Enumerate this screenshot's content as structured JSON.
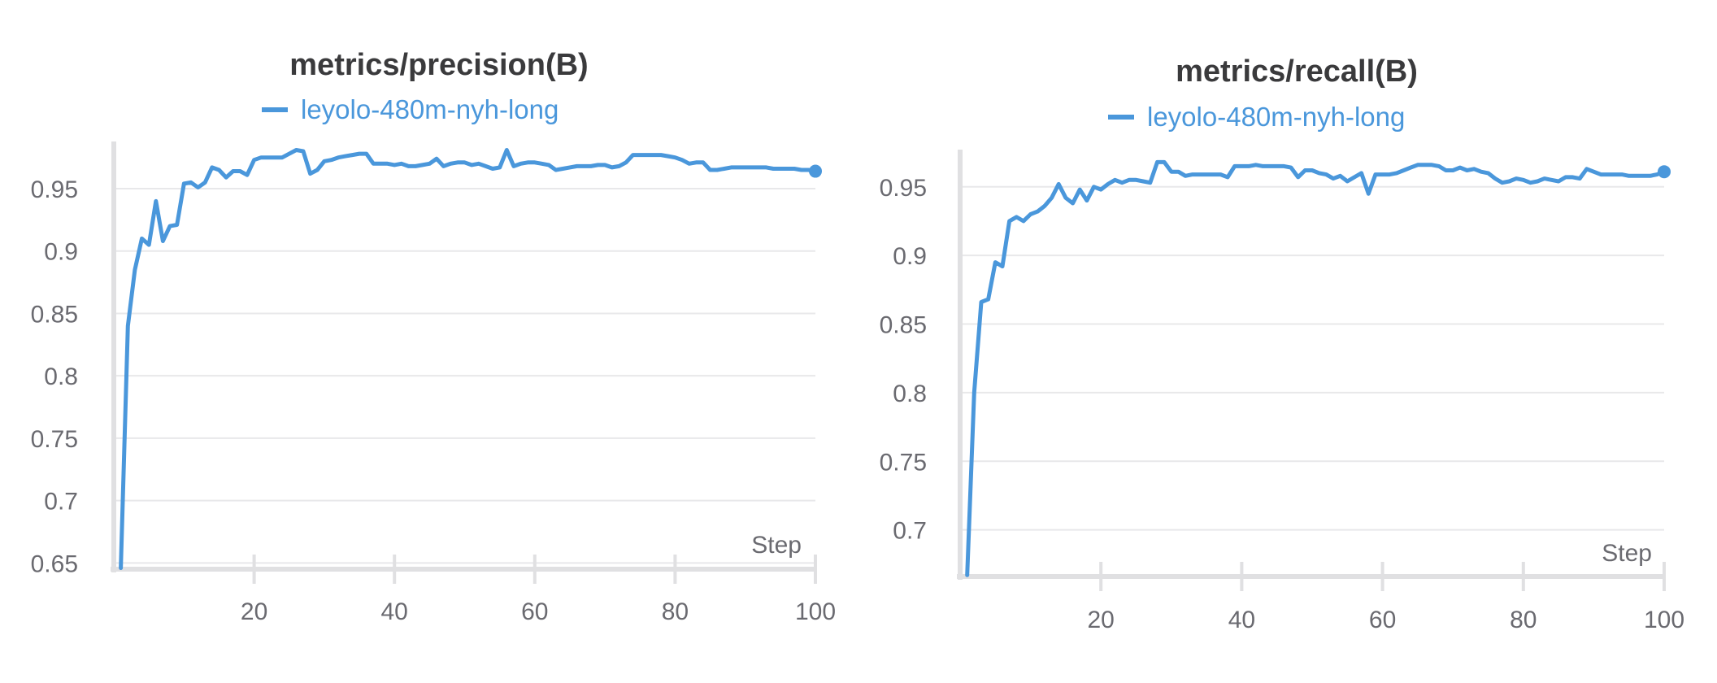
{
  "colors": {
    "series": "#4a97db",
    "text": "#3a3a3c",
    "muted": "#6a6a70"
  },
  "chart_data": [
    {
      "type": "line",
      "title": "metrics/precision(B)",
      "xlabel": "Step",
      "ylabel": "",
      "xlim": [
        0,
        100
      ],
      "ylim": [
        0.645,
        0.98
      ],
      "x_ticks": [
        20,
        40,
        60,
        80,
        100
      ],
      "y_ticks": [
        0.65,
        0.7,
        0.75,
        0.8,
        0.85,
        0.9,
        0.95
      ],
      "grid": true,
      "legend_position": "top-center",
      "series": [
        {
          "name": "leyolo-480m-nyh-long",
          "color": "#4a97db",
          "x": [
            1,
            2,
            3,
            4,
            5,
            6,
            7,
            8,
            9,
            10,
            11,
            12,
            13,
            14,
            15,
            16,
            17,
            18,
            19,
            20,
            21,
            22,
            23,
            24,
            25,
            26,
            27,
            28,
            29,
            30,
            31,
            32,
            33,
            34,
            35,
            36,
            37,
            38,
            39,
            40,
            41,
            42,
            43,
            44,
            45,
            46,
            47,
            48,
            49,
            50,
            51,
            52,
            53,
            54,
            55,
            56,
            57,
            58,
            59,
            60,
            61,
            62,
            63,
            64,
            65,
            66,
            67,
            68,
            69,
            70,
            71,
            72,
            73,
            74,
            75,
            76,
            77,
            78,
            79,
            80,
            81,
            82,
            83,
            84,
            85,
            86,
            87,
            88,
            89,
            90,
            91,
            92,
            93,
            94,
            95,
            96,
            97,
            98,
            99,
            100
          ],
          "values": [
            0.646,
            0.84,
            0.885,
            0.91,
            0.905,
            0.94,
            0.908,
            0.92,
            0.921,
            0.954,
            0.955,
            0.951,
            0.955,
            0.967,
            0.965,
            0.959,
            0.964,
            0.964,
            0.961,
            0.973,
            0.975,
            0.975,
            0.975,
            0.975,
            0.978,
            0.981,
            0.98,
            0.962,
            0.965,
            0.972,
            0.973,
            0.975,
            0.976,
            0.977,
            0.978,
            0.978,
            0.97,
            0.97,
            0.97,
            0.969,
            0.97,
            0.968,
            0.968,
            0.969,
            0.97,
            0.974,
            0.968,
            0.97,
            0.971,
            0.971,
            0.969,
            0.97,
            0.968,
            0.966,
            0.967,
            0.981,
            0.968,
            0.97,
            0.971,
            0.971,
            0.97,
            0.969,
            0.965,
            0.966,
            0.967,
            0.968,
            0.968,
            0.968,
            0.969,
            0.969,
            0.967,
            0.968,
            0.971,
            0.977,
            0.977,
            0.977,
            0.977,
            0.977,
            0.976,
            0.975,
            0.973,
            0.97,
            0.971,
            0.971,
            0.965,
            0.965,
            0.966,
            0.967,
            0.967,
            0.967,
            0.967,
            0.967,
            0.967,
            0.966,
            0.966,
            0.966,
            0.966,
            0.965,
            0.965,
            0.964
          ]
        }
      ]
    },
    {
      "type": "line",
      "title": "metrics/recall(B)",
      "xlabel": "Step",
      "ylabel": "",
      "xlim": [
        0,
        100
      ],
      "ylim": [
        0.666,
        0.97
      ],
      "x_ticks": [
        20,
        40,
        60,
        80,
        100
      ],
      "y_ticks": [
        0.7,
        0.75,
        0.8,
        0.85,
        0.9,
        0.95
      ],
      "grid": true,
      "legend_position": "top-center",
      "series": [
        {
          "name": "leyolo-480m-nyh-long",
          "color": "#4a97db",
          "x": [
            1,
            2,
            3,
            4,
            5,
            6,
            7,
            8,
            9,
            10,
            11,
            12,
            13,
            14,
            15,
            16,
            17,
            18,
            19,
            20,
            21,
            22,
            23,
            24,
            25,
            26,
            27,
            28,
            29,
            30,
            31,
            32,
            33,
            34,
            35,
            36,
            37,
            38,
            39,
            40,
            41,
            42,
            43,
            44,
            45,
            46,
            47,
            48,
            49,
            50,
            51,
            52,
            53,
            54,
            55,
            56,
            57,
            58,
            59,
            60,
            61,
            62,
            63,
            64,
            65,
            66,
            67,
            68,
            69,
            70,
            71,
            72,
            73,
            74,
            75,
            76,
            77,
            78,
            79,
            80,
            81,
            82,
            83,
            84,
            85,
            86,
            87,
            88,
            89,
            90,
            91,
            92,
            93,
            94,
            95,
            96,
            97,
            98,
            99,
            100
          ],
          "values": [
            0.667,
            0.8,
            0.866,
            0.868,
            0.895,
            0.892,
            0.925,
            0.928,
            0.925,
            0.93,
            0.932,
            0.936,
            0.942,
            0.952,
            0.942,
            0.938,
            0.948,
            0.94,
            0.95,
            0.948,
            0.952,
            0.955,
            0.953,
            0.955,
            0.955,
            0.954,
            0.953,
            0.968,
            0.968,
            0.961,
            0.961,
            0.958,
            0.959,
            0.959,
            0.959,
            0.959,
            0.959,
            0.957,
            0.965,
            0.965,
            0.965,
            0.966,
            0.965,
            0.965,
            0.965,
            0.965,
            0.964,
            0.957,
            0.962,
            0.962,
            0.96,
            0.959,
            0.956,
            0.958,
            0.954,
            0.957,
            0.96,
            0.945,
            0.959,
            0.959,
            0.959,
            0.96,
            0.962,
            0.964,
            0.966,
            0.966,
            0.966,
            0.965,
            0.962,
            0.962,
            0.964,
            0.962,
            0.963,
            0.961,
            0.96,
            0.956,
            0.953,
            0.954,
            0.956,
            0.955,
            0.953,
            0.954,
            0.956,
            0.955,
            0.954,
            0.957,
            0.957,
            0.956,
            0.963,
            0.961,
            0.959,
            0.959,
            0.959,
            0.959,
            0.958,
            0.958,
            0.958,
            0.958,
            0.959,
            0.961
          ]
        }
      ]
    }
  ]
}
